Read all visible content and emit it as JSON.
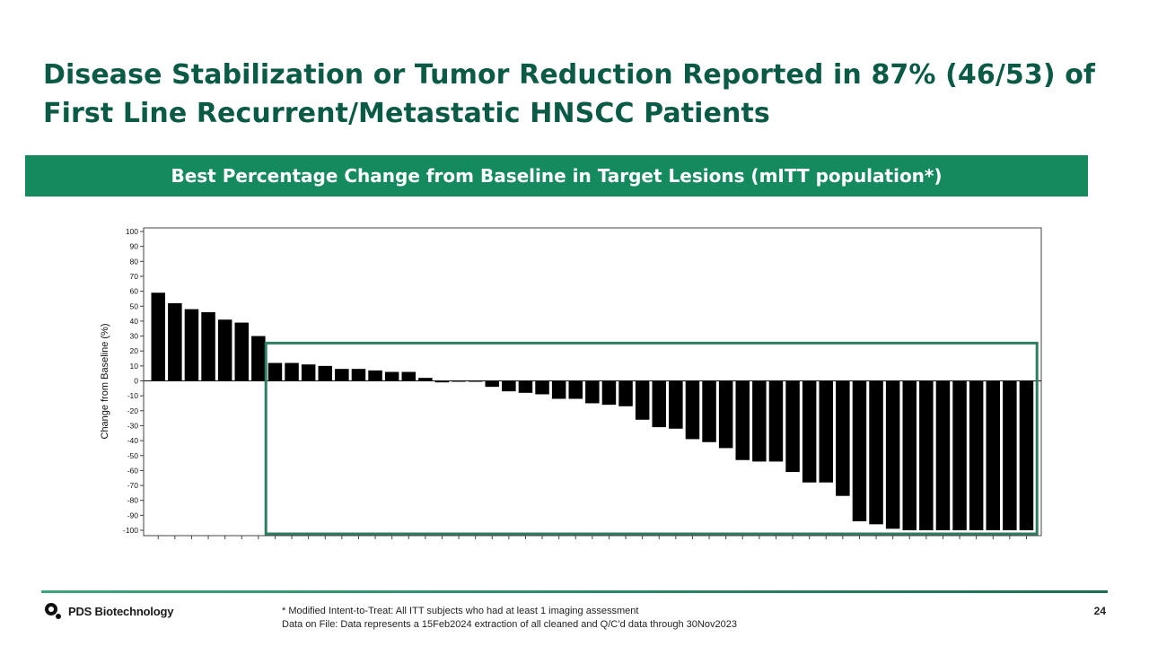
{
  "slide": {
    "title": "Disease Stabilization or Tumor Reduction Reported in 87% (46/53) of First Line Recurrent/Metastatic HNSCC Patients",
    "banner": "Best Percentage Change from Baseline in Target Lesions (mITT population*)",
    "footnote_line1": "* Modified Intent-to-Treat:  All ITT subjects who had at least 1 imaging assessment",
    "footnote_line2": "Data on File: Data represents  a 15Feb2024 extraction of all cleaned and Q/C’d data through 30Nov2023",
    "page_number": "24",
    "logo_text": "PDS Biotechnology"
  },
  "colors": {
    "title": "#0b5a45",
    "banner_bg": "#158a5e",
    "bar": "#000000",
    "highlight_box": "#2f7d60"
  },
  "chart_data": {
    "type": "bar",
    "title": "Best Percentage Change from Baseline in Target Lesions (mITT population*)",
    "xlabel": "",
    "ylabel": "Change from Baseline (%)",
    "ylim": [
      -100,
      100
    ],
    "yticks": [
      100,
      90,
      80,
      70,
      60,
      50,
      40,
      30,
      20,
      10,
      0,
      -10,
      -20,
      -30,
      -40,
      -50,
      -60,
      -70,
      -80,
      -90,
      -100
    ],
    "values": [
      59,
      52,
      48,
      46,
      41,
      39,
      30,
      12,
      12,
      11,
      10,
      8,
      8,
      7,
      6,
      6,
      2,
      -1,
      -0.5,
      -0.5,
      -4,
      -7,
      -8,
      -9,
      -12,
      -12,
      -15,
      -16,
      -17,
      -26,
      -31,
      -32,
      -39,
      -41,
      -45,
      -53,
      -54,
      -54,
      -61,
      -68,
      -68,
      -77,
      -94,
      -96,
      -99,
      -100,
      -100,
      -100,
      -100,
      -100,
      -100,
      -100,
      -100
    ],
    "highlight": {
      "description": "Disease stabilization or tumor reduction",
      "first_index": 7,
      "last_index": 52,
      "y_range": [
        -100,
        25
      ]
    }
  }
}
